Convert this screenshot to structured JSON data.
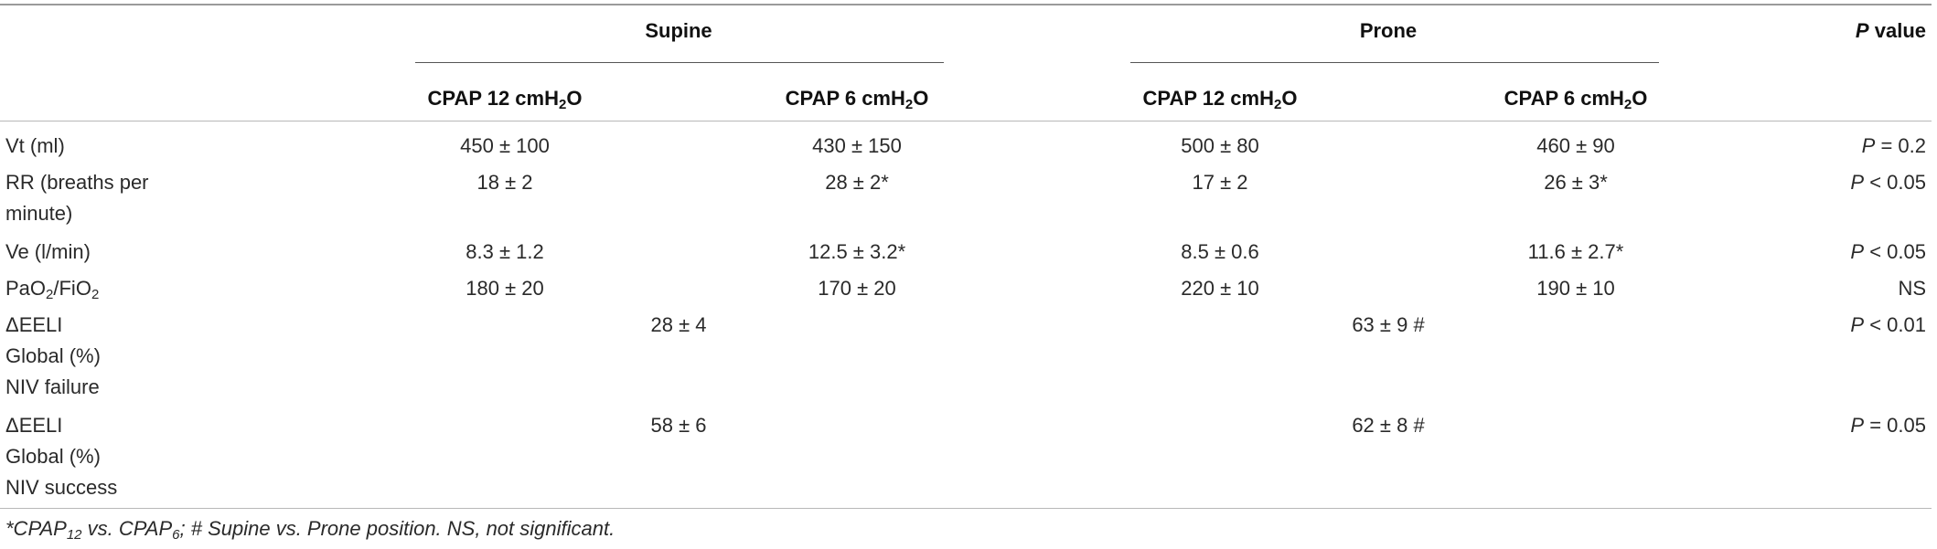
{
  "header": {
    "group_supine": "Supine",
    "group_prone": "Prone",
    "pvalue_p": "P",
    "pvalue_rest": "value",
    "col_cpap12_prefix": "CPAP 12 cmH",
    "col_cpap6_prefix": "CPAP 6 cmH",
    "col_sub": "2",
    "col_suffix": "O"
  },
  "rows": {
    "vt": {
      "label": "Vt (ml)",
      "s12": "450 ± 100",
      "s6": "430 ± 150",
      "p12": "500 ± 80",
      "p6": "460 ± 90",
      "pv_p": "P",
      "pv_rest": " = 0.2"
    },
    "rr": {
      "label1": "RR (breaths per",
      "label2": "minute)",
      "s12": "18 ± 2",
      "s6": "28 ± 2*",
      "p12": "17 ± 2",
      "p6": "26 ± 3*",
      "pv_p": "P",
      "pv_rest": " < 0.05"
    },
    "ve": {
      "label": "Ve (l/min)",
      "s12": "8.3 ± 1.2",
      "s6": "12.5 ± 3.2*",
      "p12": "8.5 ± 0.6",
      "p6": "11.6 ± 2.7*",
      "pv_p": "P",
      "pv_rest": " < 0.05"
    },
    "pf": {
      "label_a": "PaO",
      "label_sub1": "2",
      "label_b": "/FiO",
      "label_sub2": "2",
      "s12": "180 ± 20",
      "s6": "170 ± 20",
      "p12": "220 ± 10",
      "p6": "190 ± 10",
      "pv": "NS"
    },
    "eeli_fail": {
      "label1": "ΔEELI",
      "label2": "Global (%)",
      "label3": "NIV failure",
      "supine": "28 ± 4",
      "prone": "63 ± 9 #",
      "pv_p": "P",
      "pv_rest": " < 0.01"
    },
    "eeli_succ": {
      "label1": "ΔEELI",
      "label2": "Global (%)",
      "label3": "NIV success",
      "supine": "58 ± 6",
      "prone": "62 ± 8 #",
      "pv_p": "P",
      "pv_rest": " = 0.05"
    }
  },
  "footnote": {
    "a": "*CPAP",
    "sub1": "12",
    "b": " vs. CPAP",
    "sub2": "6",
    "c": "; # Supine vs. Prone position. NS, not significant."
  }
}
